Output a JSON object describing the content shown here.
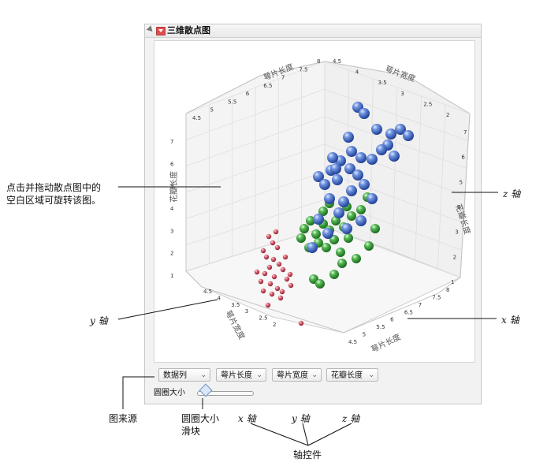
{
  "report": {
    "title": "三维散点图"
  },
  "plot": {
    "axes": {
      "top_left_axis_label": "萼片长度",
      "top_right_axis_label": "萼片宽度",
      "left_axis_label": "花瓣长度",
      "right_axis_label": "花瓣长度",
      "bottom_left_axis_label": "萼片宽度",
      "bottom_right_axis_label": "萼片长度"
    },
    "ticks": {
      "top_left": [
        "4.5",
        "5",
        "5.5",
        "6",
        "6.5",
        "7",
        "7.5",
        "8"
      ],
      "top_right": [
        "4.5",
        "4",
        "3.5",
        "3",
        "2.5",
        "2"
      ],
      "left": [
        "7",
        "6",
        "5",
        "4",
        "3",
        "2",
        "1"
      ],
      "right": [
        "7",
        "6",
        "5",
        "4",
        "3",
        "2",
        "1"
      ],
      "bottom_left": [
        "4.5",
        "4",
        "3.5",
        "3",
        "2.5",
        "2"
      ],
      "bottom_right": [
        "4.5",
        "5",
        "5.5",
        "6",
        "6.5",
        "7",
        "7.5",
        "8"
      ]
    },
    "colors": {
      "setosa": "#d9596a",
      "versicolor": "#3fa33f",
      "virginica": "#4a73cf"
    }
  },
  "controls": {
    "dropdowns": [
      "数据列",
      "萼片长度",
      "萼片宽度",
      "花瓣长度"
    ],
    "slider_label": "圆圈大小"
  },
  "annotations": {
    "rotate_hint_line1": "点击并拖动散点图中的",
    "rotate_hint_line2": "空白区域可旋转该图。",
    "z_axis_right": "z 轴",
    "y_axis_left": "y 轴",
    "x_axis_right": "x 轴",
    "source_label": "图来源",
    "slider_label_line1": "圆圈大小",
    "slider_label_line2": "滑块",
    "x_axis_bottom": "x 轴",
    "y_axis_bottom": "y 轴",
    "z_axis_bottom": "z 轴",
    "axis_controls": "轴控件"
  }
}
